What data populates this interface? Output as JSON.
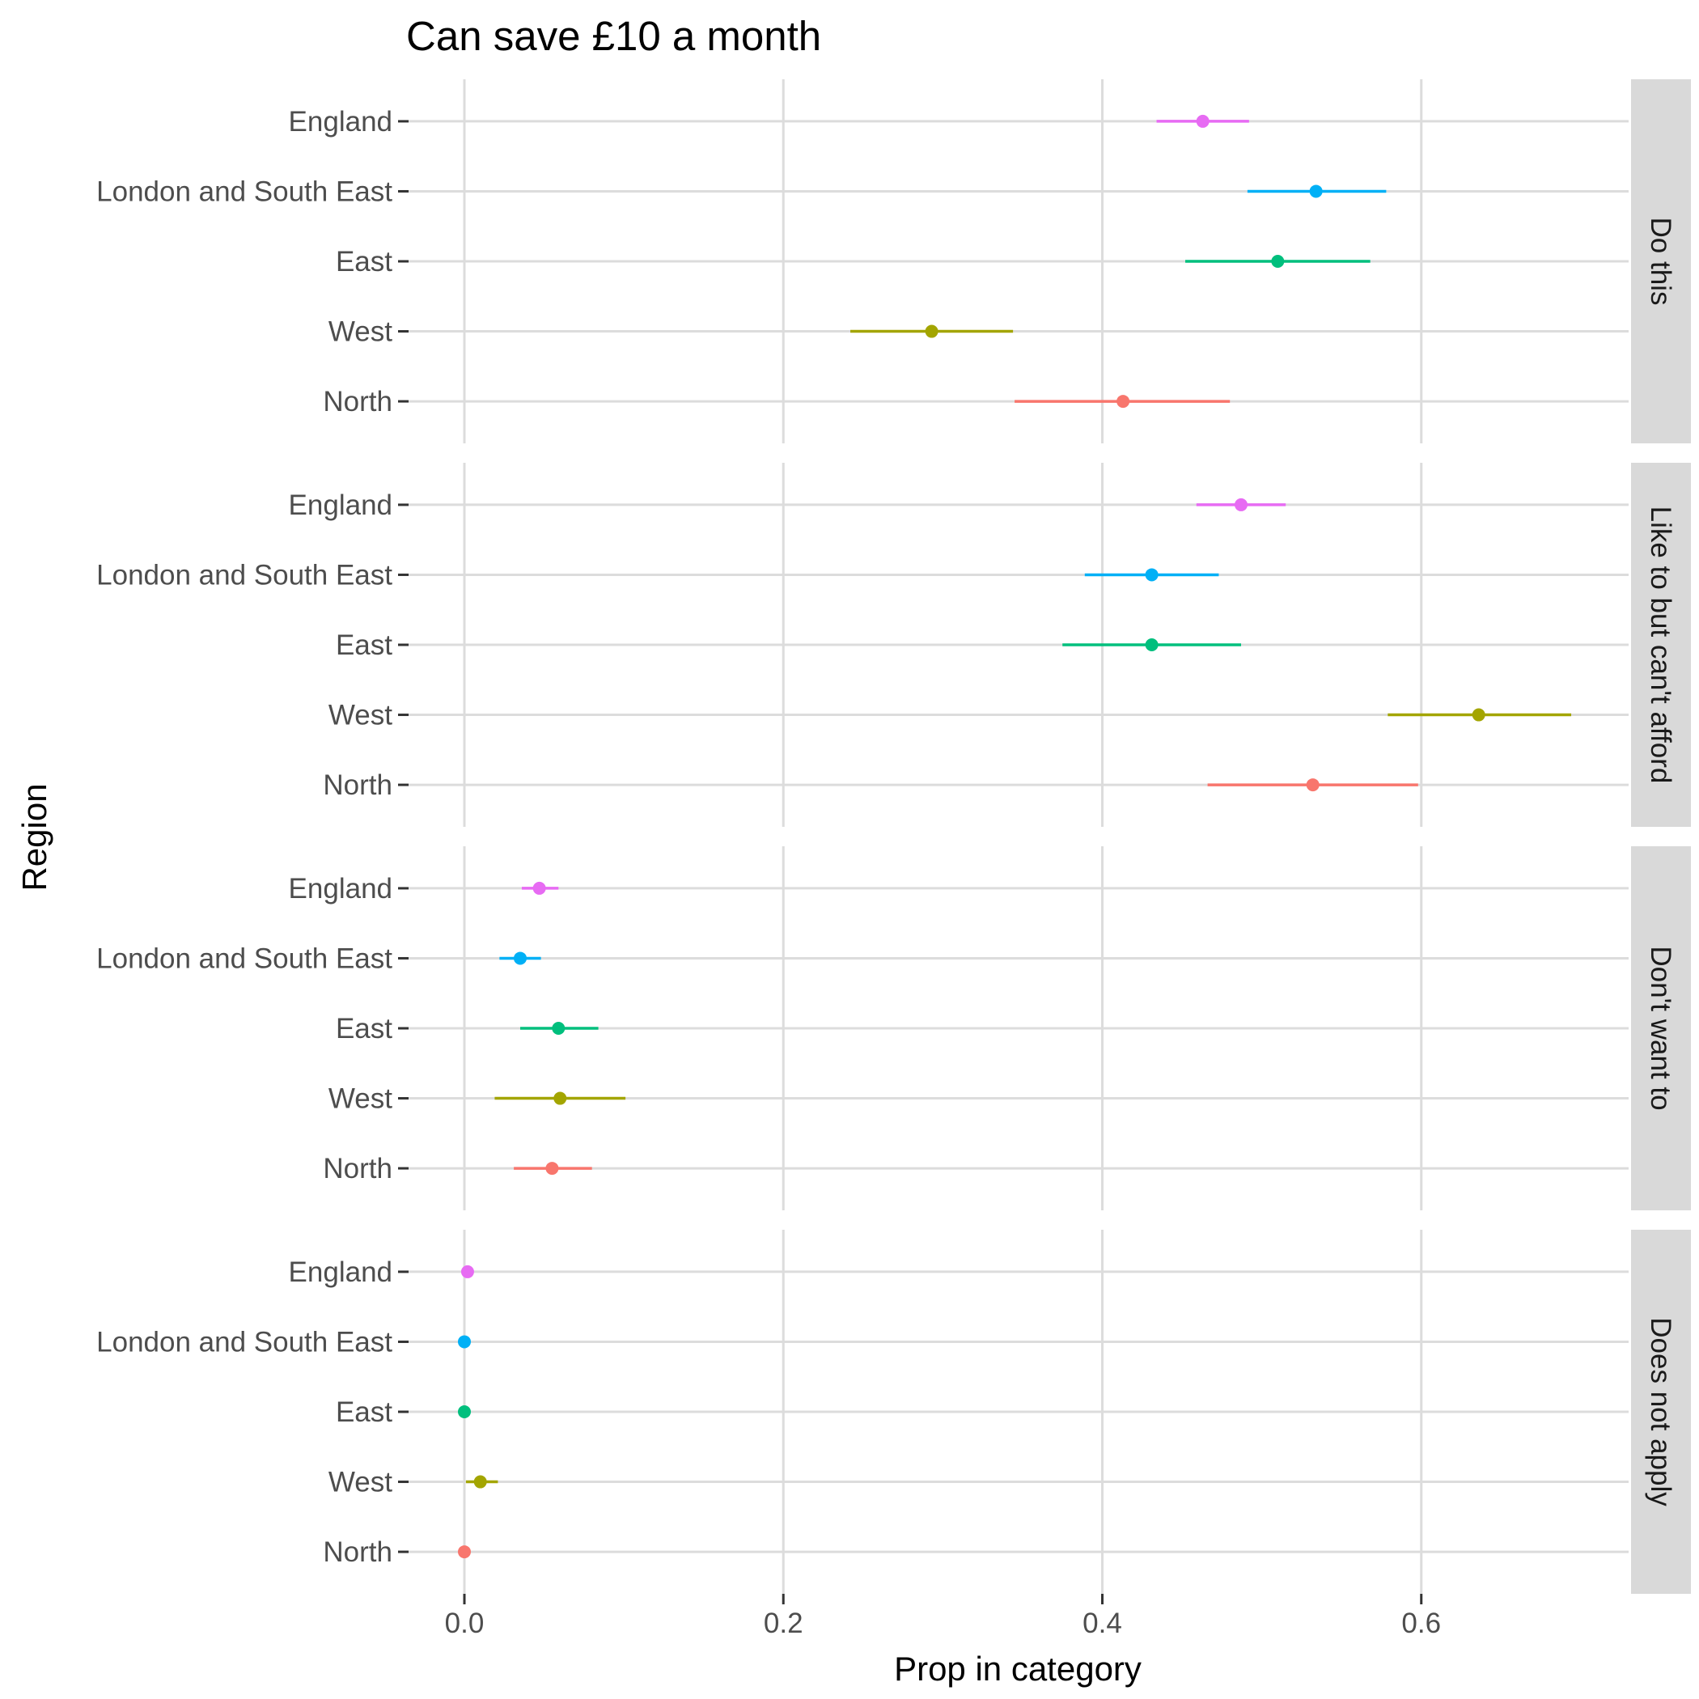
{
  "chart_data": {
    "type": "pointrange",
    "title": "Can save £10 a month",
    "xlabel": "Prop in category",
    "ylabel": "Region",
    "xlim": [
      -0.035,
      0.73
    ],
    "x_ticks": [
      0.0,
      0.2,
      0.4,
      0.6
    ],
    "x_tick_labels": [
      "0.0",
      "0.2",
      "0.4",
      "0.6"
    ],
    "grid": true,
    "categories": [
      "England",
      "London and South East",
      "East",
      "West",
      "North"
    ],
    "colors": {
      "England": "#E76BF3",
      "London and South East": "#00B0F6",
      "East": "#00BF7D",
      "West": "#A3A500",
      "North": "#F8766D"
    },
    "panels": [
      {
        "label": "Do this",
        "points": [
          {
            "region": "England",
            "estimate": 0.463,
            "lower": 0.434,
            "upper": 0.492
          },
          {
            "region": "London and South East",
            "estimate": 0.534,
            "lower": 0.491,
            "upper": 0.578
          },
          {
            "region": "East",
            "estimate": 0.51,
            "lower": 0.452,
            "upper": 0.568
          },
          {
            "region": "West",
            "estimate": 0.293,
            "lower": 0.242,
            "upper": 0.344
          },
          {
            "region": "North",
            "estimate": 0.413,
            "lower": 0.345,
            "upper": 0.48
          }
        ]
      },
      {
        "label": "Like to but can't afford",
        "points": [
          {
            "region": "England",
            "estimate": 0.487,
            "lower": 0.459,
            "upper": 0.515
          },
          {
            "region": "London and South East",
            "estimate": 0.431,
            "lower": 0.389,
            "upper": 0.473
          },
          {
            "region": "East",
            "estimate": 0.431,
            "lower": 0.375,
            "upper": 0.487
          },
          {
            "region": "West",
            "estimate": 0.636,
            "lower": 0.579,
            "upper": 0.694
          },
          {
            "region": "North",
            "estimate": 0.532,
            "lower": 0.466,
            "upper": 0.598
          }
        ]
      },
      {
        "label": "Don't want to",
        "points": [
          {
            "region": "England",
            "estimate": 0.047,
            "lower": 0.036,
            "upper": 0.059
          },
          {
            "region": "London and South East",
            "estimate": 0.035,
            "lower": 0.022,
            "upper": 0.048
          },
          {
            "region": "East",
            "estimate": 0.059,
            "lower": 0.035,
            "upper": 0.084
          },
          {
            "region": "West",
            "estimate": 0.06,
            "lower": 0.019,
            "upper": 0.101
          },
          {
            "region": "North",
            "estimate": 0.055,
            "lower": 0.031,
            "upper": 0.08
          }
        ]
      },
      {
        "label": "Does not apply",
        "points": [
          {
            "region": "England",
            "estimate": 0.002,
            "lower": 0.0,
            "upper": 0.003
          },
          {
            "region": "London and South East",
            "estimate": 0.0,
            "lower": 0.0,
            "upper": 0.0
          },
          {
            "region": "East",
            "estimate": 0.0,
            "lower": 0.0,
            "upper": 0.0
          },
          {
            "region": "West",
            "estimate": 0.01,
            "lower": 0.001,
            "upper": 0.021
          },
          {
            "region": "North",
            "estimate": 0.0,
            "lower": 0.0,
            "upper": 0.0
          }
        ]
      }
    ]
  }
}
